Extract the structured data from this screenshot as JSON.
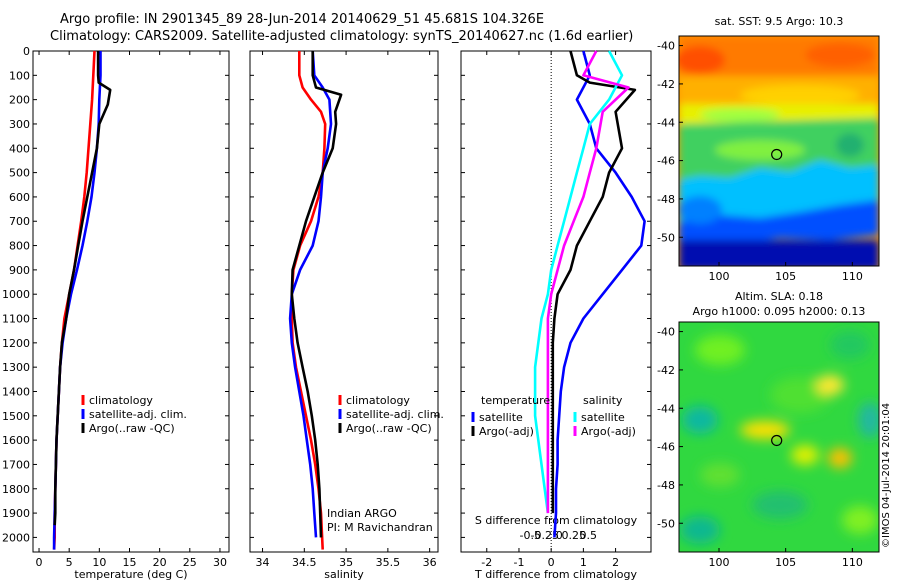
{
  "header": {
    "title_line1": "Argo profile: IN 2901345_89 28-Jun-2014 20140629_51 45.681S 104.326E",
    "title_line2": "Climatology: CARS2009. Satellite-adjusted climatology: synTS_20140627.nc (1.6d earlier)"
  },
  "colors": {
    "climatology": "#ff0000",
    "satellite": "#0000ff",
    "argo": "#000000",
    "salinity_satellite": "#00ffff",
    "salinity_argo": "#ff00ff"
  },
  "chart_data": [
    {
      "id": "temperature",
      "type": "line",
      "xlabel": "temperature (deg C)",
      "xlim": [
        -1,
        31.5
      ],
      "xticks": [
        0,
        5,
        10,
        15,
        20,
        25,
        30
      ],
      "ylim": [
        0,
        2060
      ],
      "yticks": [
        0,
        100,
        200,
        300,
        400,
        500,
        600,
        700,
        800,
        900,
        1000,
        1100,
        1200,
        1300,
        1400,
        1500,
        1600,
        1700,
        1800,
        1900,
        2000
      ],
      "legend": [
        "climatology",
        "satellite-adj. clim.",
        "Argo(..raw -QC)"
      ],
      "series": [
        {
          "name": "climatology",
          "color": "#ff0000",
          "x": [
            9.2,
            9.0,
            8.8,
            8.5,
            8.2,
            7.9,
            7.5,
            7.0,
            6.4,
            5.8,
            5.0,
            4.2,
            3.8,
            3.5,
            3.3,
            3.1,
            2.9,
            2.8,
            2.7,
            2.6,
            2.6,
            2.5
          ],
          "y": [
            0,
            100,
            200,
            300,
            400,
            500,
            600,
            700,
            800,
            900,
            1000,
            1100,
            1200,
            1300,
            1400,
            1500,
            1600,
            1700,
            1800,
            1900,
            2000,
            2050
          ]
        },
        {
          "name": "satellite-adj. clim.",
          "color": "#0000ff",
          "x": [
            10.2,
            10.2,
            10.0,
            9.9,
            9.6,
            9.2,
            8.7,
            8.0,
            7.2,
            6.3,
            5.3,
            4.5,
            3.9,
            3.5,
            3.3,
            3.1,
            2.9,
            2.8,
            2.7,
            2.6,
            2.5,
            2.5
          ],
          "y": [
            0,
            100,
            200,
            300,
            400,
            500,
            600,
            700,
            800,
            900,
            1000,
            1100,
            1200,
            1300,
            1400,
            1500,
            1600,
            1700,
            1800,
            1900,
            2000,
            2050
          ]
        },
        {
          "name": "Argo(..raw -QC)",
          "color": "#000000",
          "x": [
            9.8,
            9.8,
            9.9,
            11.8,
            11.4,
            10.0,
            9.6,
            8.8,
            8.0,
            7.2,
            6.5,
            5.8,
            5.0,
            4.5,
            3.8,
            3.5,
            3.3,
            3.1,
            2.9,
            2.8,
            2.7,
            2.7,
            2.6
          ],
          "y": [
            0,
            100,
            130,
            160,
            220,
            300,
            400,
            500,
            600,
            700,
            800,
            900,
            1000,
            1100,
            1200,
            1300,
            1400,
            1500,
            1600,
            1700,
            1800,
            1900,
            1950
          ]
        }
      ]
    },
    {
      "id": "salinity",
      "type": "line",
      "xlabel": "salinity",
      "xlim": [
        33.85,
        36.1
      ],
      "xticks": [
        34,
        34.5,
        35,
        35.5,
        36
      ],
      "xticklabels": [
        "34",
        "34.5",
        "35",
        "35.5",
        "36"
      ],
      "ylim": [
        0,
        2060
      ],
      "legend": [
        "climatology",
        "satellite-adj. clim.",
        "Argo(..raw -QC)"
      ],
      "annotation": [
        "Indian ARGO",
        "PI: M Ravichandran"
      ],
      "series": [
        {
          "name": "climatology",
          "color": "#ff0000",
          "x": [
            34.44,
            34.44,
            34.48,
            34.58,
            34.7,
            34.75,
            34.74,
            34.72,
            34.67,
            34.58,
            34.45,
            34.37,
            34.35,
            34.35,
            34.36,
            34.4,
            34.46,
            34.52,
            34.58,
            34.63,
            34.67,
            34.7,
            34.72
          ],
          "y": [
            0,
            100,
            150,
            200,
            250,
            300,
            400,
            500,
            600,
            700,
            800,
            900,
            1000,
            1100,
            1200,
            1300,
            1400,
            1500,
            1600,
            1700,
            1800,
            1900,
            2050
          ]
        },
        {
          "name": "satellite-adj. clim.",
          "color": "#0000ff",
          "x": [
            34.6,
            34.62,
            34.72,
            34.8,
            34.82,
            34.78,
            34.75,
            34.72,
            34.7,
            34.67,
            34.6,
            34.45,
            34.35,
            34.33,
            34.35,
            34.39,
            34.44,
            34.49,
            34.53,
            34.57,
            34.6,
            34.62,
            34.64
          ],
          "y": [
            0,
            100,
            150,
            200,
            300,
            400,
            450,
            500,
            600,
            700,
            800,
            900,
            1000,
            1100,
            1200,
            1300,
            1400,
            1500,
            1600,
            1700,
            1800,
            1900,
            2000
          ]
        },
        {
          "name": "Argo(..raw -QC)",
          "color": "#000000",
          "x": [
            34.6,
            34.6,
            34.64,
            34.94,
            34.87,
            34.88,
            34.84,
            34.72,
            34.62,
            34.52,
            34.44,
            34.36,
            34.35,
            34.38,
            34.42,
            34.48,
            34.54,
            34.59,
            34.63,
            34.66,
            34.68,
            34.69,
            34.7
          ],
          "y": [
            0,
            100,
            150,
            180,
            250,
            300,
            400,
            500,
            600,
            700,
            800,
            900,
            1000,
            1100,
            1200,
            1300,
            1400,
            1500,
            1600,
            1700,
            1800,
            1900,
            2000
          ]
        }
      ]
    },
    {
      "id": "difference",
      "type": "line",
      "xlabel": "T difference from climatology",
      "top_xlabel": "S difference from climatology",
      "xlim": [
        -2.8,
        3.1
      ],
      "xticks": [
        -2,
        -1,
        0,
        1,
        2
      ],
      "top_xticklabels": [
        "-0.5",
        "-0.25",
        "0",
        "0.25",
        "0.5"
      ],
      "top_xtick_positions": [
        -2,
        -1,
        0,
        1,
        2
      ],
      "ylim": [
        0,
        2060
      ],
      "legend_titles": [
        "temperature",
        "salinity"
      ],
      "legend": [
        "satellite",
        "Argo(-adj)",
        "satellite",
        "Argo(-adj)"
      ],
      "series": [
        {
          "name": "temperature satellite",
          "color": "#0000ff",
          "x": [
            1.0,
            1.2,
            0.8,
            1.2,
            1.4,
            2.0,
            2.5,
            2.9,
            2.8,
            2.2,
            1.6,
            1.0,
            0.6,
            0.4,
            0.3,
            0.25,
            0.2,
            0.2,
            0.15,
            0.15,
            0.1
          ],
          "y": [
            0,
            100,
            200,
            300,
            400,
            500,
            600,
            700,
            800,
            900,
            1000,
            1100,
            1200,
            1300,
            1400,
            1500,
            1600,
            1700,
            1800,
            1900,
            2000
          ]
        },
        {
          "name": "temperature Argo(-adj)",
          "color": "#000000",
          "x": [
            0.6,
            0.8,
            1.2,
            2.6,
            2.0,
            2.2,
            1.8,
            1.6,
            1.2,
            0.8,
            0.6,
            0.2,
            0.1,
            0.05,
            0.05,
            0.05,
            0.05,
            0.05,
            0.05,
            0.05,
            0.05
          ],
          "y": [
            0,
            100,
            130,
            160,
            250,
            400,
            500,
            600,
            700,
            800,
            900,
            1000,
            1100,
            1200,
            1300,
            1400,
            1500,
            1600,
            1700,
            1800,
            1900
          ]
        },
        {
          "name": "salinity satellite",
          "color": "#00ffff",
          "x": [
            1.8,
            2.2,
            1.8,
            1.2,
            1.0,
            0.8,
            0.6,
            0.4,
            0.2,
            0.0,
            -0.1,
            -0.3,
            -0.4,
            -0.5,
            -0.5,
            -0.5,
            -0.4,
            -0.3,
            -0.2,
            -0.1
          ],
          "y": [
            0,
            100,
            200,
            300,
            400,
            500,
            600,
            700,
            800,
            900,
            1000,
            1100,
            1200,
            1300,
            1400,
            1500,
            1600,
            1700,
            1800,
            1900
          ]
        },
        {
          "name": "salinity Argo(-adj)",
          "color": "#ff00ff",
          "x": [
            1.4,
            1.0,
            2.4,
            1.6,
            1.4,
            1.2,
            1.0,
            0.7,
            0.4,
            0.2,
            0.0,
            -0.1,
            -0.1,
            -0.1,
            -0.1,
            -0.1,
            -0.1,
            -0.1,
            -0.1,
            -0.1
          ],
          "y": [
            0,
            100,
            150,
            250,
            400,
            500,
            600,
            700,
            800,
            900,
            1000,
            1100,
            1200,
            1300,
            1400,
            1500,
            1600,
            1700,
            1800,
            1900
          ]
        }
      ]
    },
    {
      "id": "sst_map",
      "type": "heatmap",
      "title": "sat. SST: 9.5 Argo: 10.3",
      "xlim": [
        97,
        112
      ],
      "ylim": [
        -51.5,
        -39.5
      ],
      "xticks": [
        100,
        105,
        110
      ],
      "yticks": [
        -40,
        -42,
        -44,
        -46,
        -48,
        -50
      ],
      "marker": {
        "lon": 104.326,
        "lat": -45.681
      }
    },
    {
      "id": "sla_map",
      "type": "heatmap",
      "title_line1": "Altim. SLA: 0.18",
      "title_line2": "Argo h1000: 0.095 h2000: 0.13",
      "side_label": "©IMOS 04-Jul-2014 20:01:04",
      "xlim": [
        97,
        112
      ],
      "ylim": [
        -51.5,
        -39.5
      ],
      "xticks": [
        100,
        105,
        110
      ],
      "yticks": [
        -40,
        -42,
        -44,
        -46,
        -48,
        -50
      ],
      "marker": {
        "lon": 104.326,
        "lat": -45.681
      }
    }
  ]
}
